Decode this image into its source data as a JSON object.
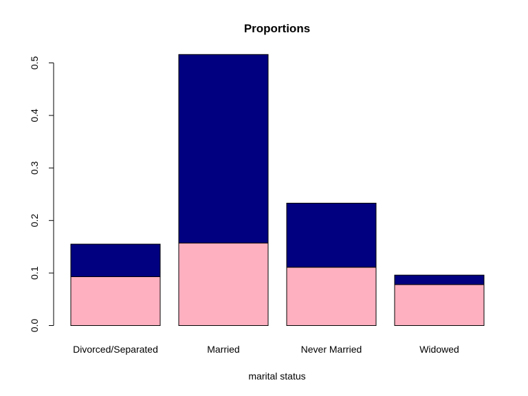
{
  "chart_data": {
    "type": "bar",
    "stacked": true,
    "title": "Proportions",
    "xlabel": "marital status",
    "ylabel": "",
    "ylim": [
      0,
      0.5
    ],
    "yticks": [
      "0.0",
      "0.1",
      "0.2",
      "0.3",
      "0.4",
      "0.5"
    ],
    "categories": [
      "Divorced/Separated",
      "Married",
      "Never Married",
      "Widowed"
    ],
    "series": [
      {
        "values": [
          0.093,
          0.157,
          0.111,
          0.078
        ],
        "color": "#FFB0C0"
      },
      {
        "values": [
          0.062,
          0.359,
          0.122,
          0.018
        ],
        "color": "#000080"
      }
    ],
    "grid": false,
    "legend": "none"
  }
}
